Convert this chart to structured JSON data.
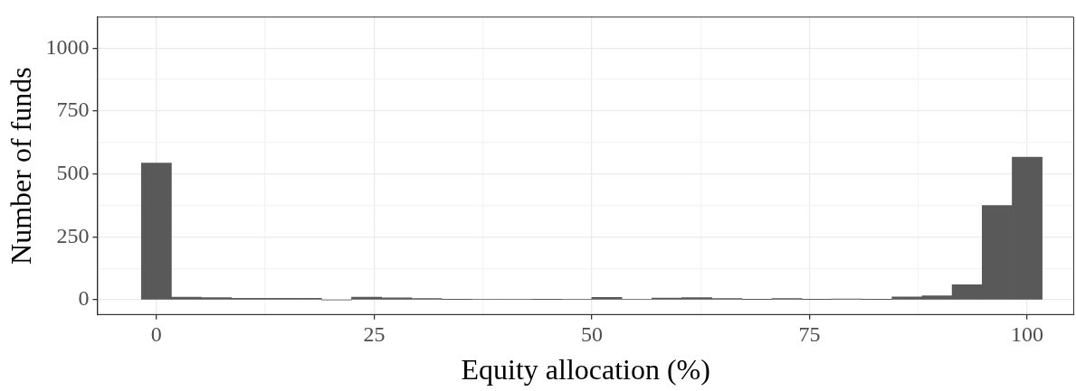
{
  "chart_data": {
    "type": "histogram",
    "xlabel": "Equity allocation (%)",
    "ylabel": "Number of funds",
    "bins": [
      -1.72,
      1.72,
      5.17,
      8.62,
      12.07,
      15.52,
      18.97,
      22.41,
      25.86,
      29.31,
      32.76,
      36.21,
      39.66,
      43.1,
      46.55,
      50,
      53.45,
      56.9,
      60.34,
      63.79,
      67.24,
      70.69,
      74.14,
      77.59,
      81.03,
      84.48,
      87.93,
      91.38,
      94.83,
      98.28,
      101.72
    ],
    "values": [
      543,
      11,
      9,
      6,
      6,
      6,
      0,
      11,
      8,
      5,
      1,
      2,
      3,
      1,
      3,
      10,
      2,
      7,
      9,
      5,
      1,
      5,
      1,
      4,
      1,
      12,
      16,
      60,
      375,
      567
    ],
    "color": "#595959",
    "xlim": [
      -6.8,
      105.4
    ],
    "ylim": [
      -60,
      1125
    ],
    "xticks": [
      0,
      {
        "value": 12.5,
        "label": null
      },
      25,
      {
        "value": 37.5,
        "label": null
      },
      50,
      {
        "value": 62.5,
        "label": null
      },
      75,
      {
        "value": 87.5,
        "label": null
      },
      100
    ],
    "yticks": [
      0,
      {
        "value": 125,
        "label": null
      },
      250,
      {
        "value": 375,
        "label": null
      },
      500,
      {
        "value": 625,
        "label": null
      },
      750,
      {
        "value": 875,
        "label": null
      },
      1000
    ],
    "grid": true
  }
}
